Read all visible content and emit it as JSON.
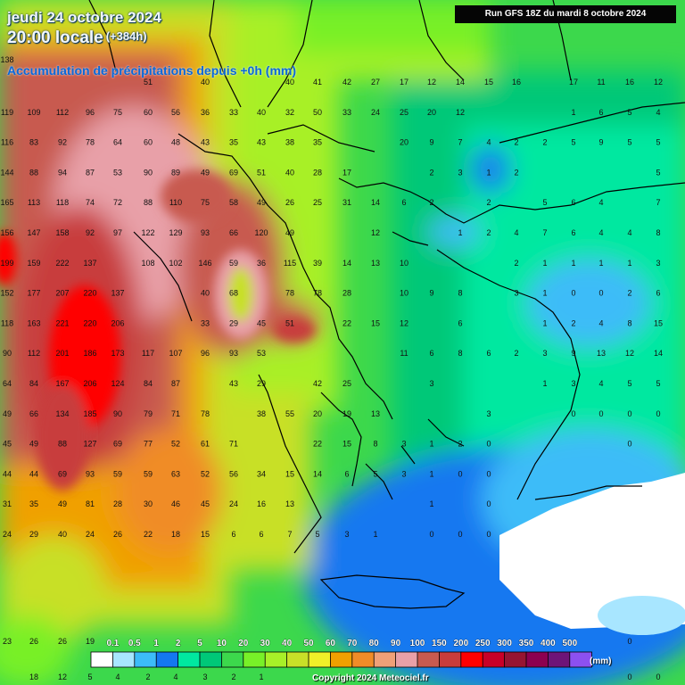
{
  "header": {
    "date_line": "jeudi 24 octobre 2024",
    "time_line": "20:00 locale",
    "lead_time": "(+384h)",
    "product": "Accumulation de précipitations depuis +0h (mm)",
    "run": "Run GFS 18Z du mardi 8 octobre 2024"
  },
  "footer": {
    "copyright": "Copyright 2024 Meteociel.fr"
  },
  "legend": {
    "unit": "(mm)",
    "ticks": [
      "0.1",
      "0.5",
      "1",
      "2",
      "5",
      "10",
      "20",
      "30",
      "40",
      "50",
      "60",
      "70",
      "80",
      "90",
      "100",
      "150",
      "200",
      "250",
      "300",
      "350",
      "400",
      "500"
    ],
    "swatches": [
      "#ffffff",
      "#a8e6ff",
      "#3cbcf8",
      "#1478f0",
      "#00e8a0",
      "#00c878",
      "#3cd84c",
      "#78f028",
      "#a8f028",
      "#c8e028",
      "#f0f028",
      "#f0a000",
      "#f08c28",
      "#f0a078",
      "#e8a0a8",
      "#c85a50",
      "#c83c3c",
      "#ff0000",
      "#c80028",
      "#961432",
      "#8c0050",
      "#6e1478",
      "#8c50f0"
    ],
    "colors": {
      "land_outline": "#000000",
      "sea_dry": "#ffffff"
    }
  },
  "grid_values": {
    "x": [
      8,
      38,
      70,
      101,
      132,
      166,
      197,
      230,
      262,
      293,
      325,
      356,
      389,
      421,
      453,
      484,
      516,
      548,
      579,
      611,
      643,
      674,
      706,
      738
    ],
    "rows": [
      [
        "138",
        "",
        "",
        "",
        "",
        "",
        "",
        "",
        "",
        "",
        "",
        "",
        "",
        "",
        "",
        "",
        "",
        "",
        "",
        "",
        "",
        "",
        "",
        ""
      ],
      [
        "",
        "",
        "",
        "",
        "",
        "51",
        "",
        "40",
        "",
        "",
        "40",
        "41",
        "42",
        "27",
        "17",
        "12",
        "14",
        "15",
        "16",
        "",
        "17",
        "11",
        "16",
        "12"
      ],
      [
        "119",
        "109",
        "112",
        "96",
        "75",
        "60",
        "56",
        "36",
        "33",
        "40",
        "32",
        "50",
        "33",
        "24",
        "25",
        "20",
        "12",
        "",
        "",
        "",
        "1",
        "6",
        "5",
        "4"
      ],
      [
        "116",
        "83",
        "92",
        "78",
        "64",
        "60",
        "48",
        "43",
        "35",
        "43",
        "38",
        "35",
        "",
        "",
        "20",
        "9",
        "7",
        "4",
        "2",
        "2",
        "5",
        "9",
        "5",
        "5"
      ],
      [
        "144",
        "88",
        "94",
        "87",
        "53",
        "90",
        "89",
        "49",
        "69",
        "51",
        "40",
        "28",
        "17",
        "",
        "",
        "2",
        "3",
        "1",
        "2",
        "",
        "",
        "",
        "",
        "5"
      ],
      [
        "165",
        "113",
        "118",
        "74",
        "72",
        "88",
        "110",
        "75",
        "58",
        "49",
        "26",
        "25",
        "31",
        "14",
        "6",
        "2",
        "",
        "2",
        "",
        "5",
        "6",
        "4",
        "",
        "7"
      ],
      [
        "156",
        "147",
        "158",
        "92",
        "97",
        "122",
        "129",
        "93",
        "66",
        "120",
        "49",
        "",
        "",
        "12",
        "",
        "",
        "1",
        "2",
        "4",
        "7",
        "6",
        "4",
        "4",
        "8"
      ],
      [
        "199",
        "159",
        "222",
        "137",
        "",
        "108",
        "102",
        "146",
        "59",
        "36",
        "115",
        "39",
        "14",
        "13",
        "10",
        "",
        "",
        "",
        "2",
        "1",
        "1",
        "1",
        "1",
        "3"
      ],
      [
        "152",
        "177",
        "207",
        "220",
        "137",
        "",
        "",
        "40",
        "68",
        "",
        "78",
        "78",
        "28",
        "",
        "10",
        "9",
        "8",
        "",
        "3",
        "1",
        "0",
        "0",
        "2",
        "6"
      ],
      [
        "118",
        "163",
        "221",
        "220",
        "206",
        "",
        "",
        "33",
        "29",
        "45",
        "51",
        "",
        "22",
        "15",
        "12",
        "",
        "6",
        "",
        "",
        "1",
        "2",
        "4",
        "8",
        "15"
      ],
      [
        "90",
        "112",
        "201",
        "186",
        "173",
        "117",
        "107",
        "96",
        "93",
        "53",
        "",
        "",
        "",
        "",
        "11",
        "6",
        "8",
        "6",
        "2",
        "3",
        "9",
        "13",
        "12",
        "14"
      ],
      [
        "64",
        "84",
        "167",
        "206",
        "124",
        "84",
        "87",
        "",
        "43",
        "29",
        "",
        "42",
        "25",
        "",
        "",
        "3",
        "",
        "",
        "",
        "1",
        "3",
        "4",
        "5",
        "5"
      ],
      [
        "49",
        "66",
        "134",
        "185",
        "90",
        "79",
        "71",
        "78",
        "",
        "38",
        "55",
        "20",
        "19",
        "13",
        "",
        "",
        "",
        "3",
        "",
        "",
        "0",
        "0",
        "0",
        "0"
      ],
      [
        "45",
        "49",
        "88",
        "127",
        "69",
        "77",
        "52",
        "61",
        "71",
        "",
        "",
        "22",
        "15",
        "8",
        "3",
        "1",
        "2",
        "0",
        "",
        "",
        "",
        "",
        "0",
        ""
      ],
      [
        "44",
        "44",
        "69",
        "93",
        "59",
        "59",
        "63",
        "52",
        "56",
        "34",
        "15",
        "14",
        "6",
        "5",
        "3",
        "1",
        "0",
        "0",
        "",
        "",
        "",
        "",
        "",
        ""
      ],
      [
        "31",
        "35",
        "49",
        "81",
        "28",
        "30",
        "46",
        "45",
        "24",
        "16",
        "13",
        "",
        "",
        "",
        "",
        "1",
        "",
        "0",
        "",
        "",
        "",
        "",
        "",
        ""
      ],
      [
        "24",
        "29",
        "40",
        "24",
        "26",
        "22",
        "18",
        "15",
        "6",
        "6",
        "7",
        "5",
        "3",
        "1",
        "",
        "0",
        "0",
        "0",
        "",
        "",
        "",
        "",
        "",
        ""
      ],
      [
        "23",
        "26",
        "26",
        "19",
        "",
        "",
        "",
        "",
        "",
        "",
        "",
        "",
        "",
        "",
        "",
        "",
        "",
        "",
        "",
        "",
        "",
        "",
        "0",
        ""
      ],
      [
        "",
        "18",
        "12",
        "5",
        "4",
        "2",
        "4",
        "3",
        "2",
        "1",
        "",
        "",
        "",
        "",
        "",
        "",
        "",
        "",
        "",
        "",
        "",
        "",
        "0",
        "0"
      ]
    ]
  }
}
